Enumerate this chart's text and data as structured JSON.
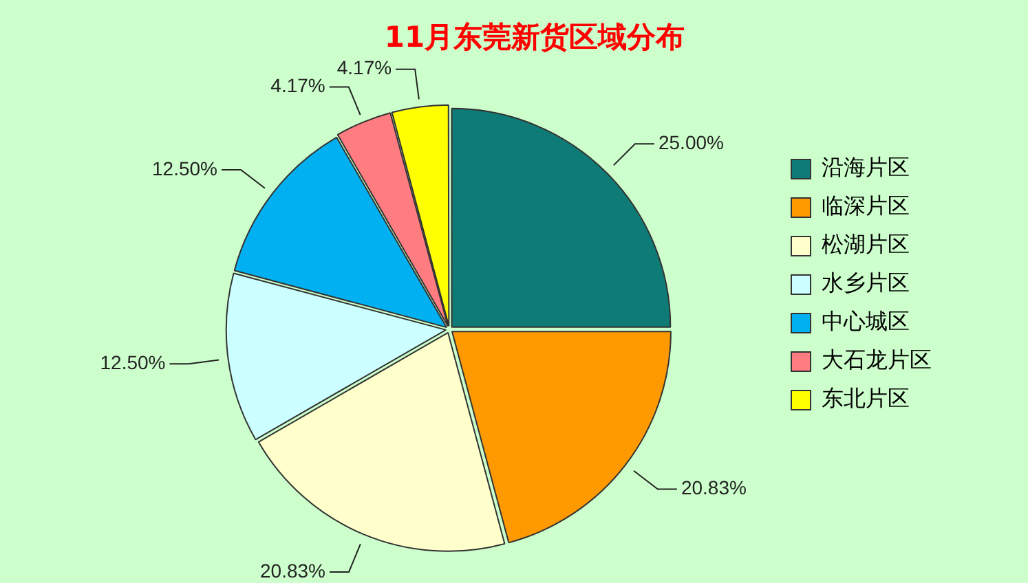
{
  "chart_data": {
    "type": "pie",
    "title": "11月东莞新货区域分布",
    "categories": [
      "沿海片区",
      "临深片区",
      "松湖片区",
      "水乡片区",
      "中心城区",
      "大石龙片区",
      "东北片区"
    ],
    "values": [
      25.0,
      20.83,
      20.83,
      12.5,
      12.5,
      4.17,
      4.17
    ],
    "value_labels": [
      "25.00%",
      "20.83%",
      "20.83%",
      "12.50%",
      "12.50%",
      "4.17%",
      "4.17%"
    ],
    "colors": [
      "#0f7b76",
      "#ff9900",
      "#ffffcc",
      "#ccffff",
      "#00b0f0",
      "#ff7c80",
      "#ffff00"
    ],
    "legend": "right"
  }
}
